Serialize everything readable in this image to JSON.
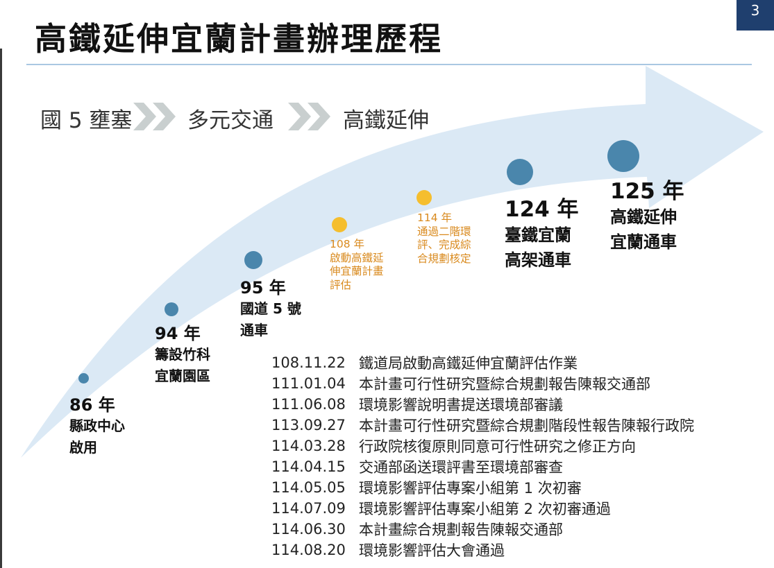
{
  "page": {
    "title": "高鐵延伸宜蘭計畫辦理歷程",
    "page_number": "3"
  },
  "phases": [
    "國 5 壅塞",
    "多元交通",
    "高鐵延伸"
  ],
  "milestones": [
    {
      "year": "86 年",
      "label": "縣政中心\n啟用"
    },
    {
      "year": "94 年",
      "label": "籌設竹科\n宜蘭園區"
    },
    {
      "year": "95 年",
      "label": "國道 5 號\n通車"
    },
    {
      "text": "108 年\n啟動高鐵延\n伸宜蘭計畫\n評估"
    },
    {
      "text": "114 年\n通過二階環\n評、完成綜\n合規劃核定"
    },
    {
      "year": "124 年",
      "label": "臺鐵宜蘭\n高架通車"
    },
    {
      "year": "125 年",
      "label": "高鐵延伸\n宜蘭通車"
    }
  ],
  "events": [
    {
      "date": "108.11.22",
      "text": "鐵道局啟動高鐵延伸宜蘭評估作業"
    },
    {
      "date": "111.01.04",
      "text": "本計畫可行性研究暨綜合規劃報告陳報交通部"
    },
    {
      "date": "111.06.08",
      "text": "環境影響說明書提送環境部審議"
    },
    {
      "date": "113.09.27",
      "text": "本計畫可行性研究暨綜合規劃階段性報告陳報行政院"
    },
    {
      "date": "114.03.28",
      "text": "行政院核復原則同意可行性研究之修正方向"
    },
    {
      "date": "114.04.15",
      "text": "交通部函送環評書至環境部審查"
    },
    {
      "date": "114.05.05",
      "text": "環境影響評估專案小組第 1 次初審"
    },
    {
      "date": "114.07.09",
      "text": "環境影響評估專案小組第 2 次初審通過"
    },
    {
      "date": "114.06.30",
      "text": "本計畫綜合規劃報告陳報交通部"
    },
    {
      "date": "114.08.20",
      "text": "環境影響評估大會通過"
    }
  ],
  "colors": {
    "arrow": "#dbe9f5",
    "blue_dot": "#4a86ac",
    "gold_dot": "#f5be2e",
    "orange_text": "#d98a1e",
    "chevron": "#c9cfcf",
    "page_box": "#1f3f6e",
    "rule": "#a9c7e2"
  }
}
